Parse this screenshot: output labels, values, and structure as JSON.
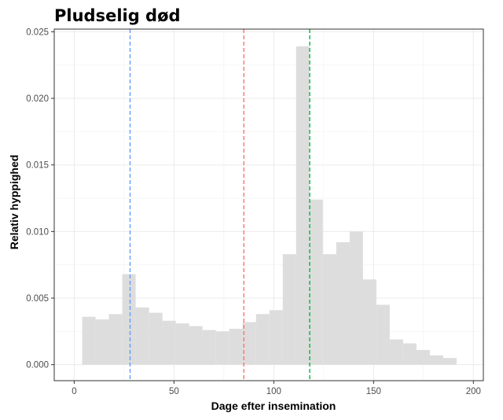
{
  "chart_data": {
    "type": "histogram",
    "title": "Pludselig død",
    "xlabel": "Dage efter insemination",
    "ylabel": "Relativ hyppighed",
    "xlim": [
      -10,
      205
    ],
    "ylim": [
      -0.0012,
      0.0252
    ],
    "xticks": [
      0,
      50,
      100,
      150,
      200
    ],
    "xtick_labels": [
      "0",
      "50",
      "100",
      "150",
      "200"
    ],
    "yticks": [
      0.0,
      0.005,
      0.01,
      0.015,
      0.02,
      0.025
    ],
    "ytick_labels": [
      "0.000",
      "0.005",
      "0.010",
      "0.015",
      "0.020",
      "0.025"
    ],
    "grid": true,
    "bin_width": 6.7,
    "bars": [
      {
        "x0": 4.0,
        "x1": 10.7,
        "y": 0.0036
      },
      {
        "x0": 10.7,
        "x1": 17.4,
        "y": 0.0034
      },
      {
        "x0": 17.4,
        "x1": 24.1,
        "y": 0.0038
      },
      {
        "x0": 24.1,
        "x1": 30.8,
        "y": 0.0068
      },
      {
        "x0": 30.8,
        "x1": 37.5,
        "y": 0.0043
      },
      {
        "x0": 37.5,
        "x1": 44.2,
        "y": 0.0039
      },
      {
        "x0": 44.2,
        "x1": 50.9,
        "y": 0.0033
      },
      {
        "x0": 50.9,
        "x1": 57.6,
        "y": 0.0031
      },
      {
        "x0": 57.6,
        "x1": 64.3,
        "y": 0.0029
      },
      {
        "x0": 64.3,
        "x1": 71.0,
        "y": 0.0026
      },
      {
        "x0": 71.0,
        "x1": 77.7,
        "y": 0.0025
      },
      {
        "x0": 77.7,
        "x1": 84.4,
        "y": 0.0027
      },
      {
        "x0": 84.4,
        "x1": 91.1,
        "y": 0.0032
      },
      {
        "x0": 91.1,
        "x1": 97.8,
        "y": 0.0038
      },
      {
        "x0": 97.8,
        "x1": 104.5,
        "y": 0.0041
      },
      {
        "x0": 104.5,
        "x1": 111.2,
        "y": 0.0083
      },
      {
        "x0": 111.2,
        "x1": 117.9,
        "y": 0.0239
      },
      {
        "x0": 117.9,
        "x1": 124.6,
        "y": 0.0124
      },
      {
        "x0": 124.6,
        "x1": 131.3,
        "y": 0.0083
      },
      {
        "x0": 131.3,
        "x1": 138.0,
        "y": 0.0092
      },
      {
        "x0": 138.0,
        "x1": 144.7,
        "y": 0.01
      },
      {
        "x0": 144.7,
        "x1": 151.4,
        "y": 0.0064
      },
      {
        "x0": 151.4,
        "x1": 158.1,
        "y": 0.0045
      },
      {
        "x0": 158.1,
        "x1": 164.8,
        "y": 0.0019
      },
      {
        "x0": 164.8,
        "x1": 171.5,
        "y": 0.0016
      },
      {
        "x0": 171.5,
        "x1": 178.2,
        "y": 0.0011
      },
      {
        "x0": 178.2,
        "x1": 184.9,
        "y": 0.0007
      },
      {
        "x0": 184.9,
        "x1": 191.6,
        "y": 0.0005
      }
    ],
    "bar_color": "#dddddd",
    "reference_lines": [
      {
        "x": 28,
        "color": "#619cff",
        "style": "dashed"
      },
      {
        "x": 85,
        "color": "#f8766d",
        "style": "dashed"
      },
      {
        "x": 118,
        "color": "#00ba38",
        "style": "dashed"
      }
    ]
  }
}
